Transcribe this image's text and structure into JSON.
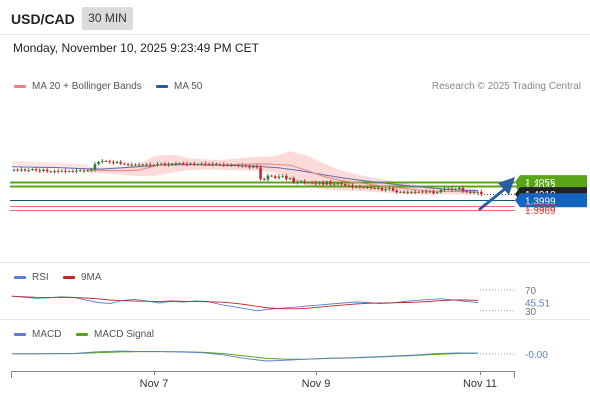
{
  "header": {
    "symbol": "USD/CAD",
    "timeframe": "30 MIN"
  },
  "datetime": "Monday, November 10, 2025 9:23:49 PM CET",
  "legend": {
    "ma20_bb": "MA 20 + Bollinger Bands",
    "ma50": "MA 50",
    "copyright": "Research © 2025 Trading Central"
  },
  "rsi_legend": {
    "rsi": "RSI",
    "ma9": "9MA"
  },
  "macd_legend": {
    "macd": "MACD",
    "signal": "MACD Signal"
  },
  "colors": {
    "up": "#2e7d32",
    "down": "#c62828",
    "ma20": "#f08080",
    "band": "#fbd3d3",
    "ma50": "#5b6fb5",
    "green": "#58a618",
    "blue": "#1565c0",
    "arrow": "#2b5d9c",
    "red_level": "#d94040"
  },
  "chart_data": {
    "type": "candlestick",
    "symbol": "USD/CAD",
    "x_ticks": [
      "Nov 7",
      "Nov 9",
      "Nov 11"
    ],
    "levels": [
      {
        "value": 1.4055,
        "label": "1.4055",
        "kind": "green"
      },
      {
        "value": 1.4043,
        "label": "1.4043",
        "kind": "green"
      },
      {
        "value": 1.4018,
        "label": "1.4018",
        "kind": "price"
      },
      {
        "value": 1.3999,
        "label": "1.3999",
        "kind": "blue"
      },
      {
        "value": 1.398,
        "label": "1.3980",
        "kind": "red"
      },
      {
        "value": 1.3969,
        "label": "1.3969",
        "kind": "red"
      }
    ],
    "close": [
      1.4093,
      1.4092,
      1.4094,
      1.409,
      1.4092,
      1.4095,
      1.4091,
      1.4089,
      1.4093,
      1.4088,
      1.4086,
      1.4089,
      1.4088,
      1.409,
      1.4087,
      1.4089,
      1.4088,
      1.409,
      1.4091,
      1.4089,
      1.4091,
      1.4093,
      1.411,
      1.4117,
      1.412,
      1.4119,
      1.4116,
      1.4114,
      1.4117,
      1.4112,
      1.411,
      1.4108,
      1.4109,
      1.4108,
      1.4109,
      1.4108,
      1.4109,
      1.4107,
      1.4108,
      1.4111,
      1.4112,
      1.4108,
      1.4109,
      1.411,
      1.4112,
      1.4113,
      1.4111,
      1.411,
      1.4112,
      1.411,
      1.4111,
      1.4112,
      1.4111,
      1.4109,
      1.4112,
      1.4109,
      1.4109,
      1.4108,
      1.4107,
      1.4107,
      1.4107,
      1.4105,
      1.4106,
      1.4103,
      1.41,
      1.4105,
      1.41,
      1.4065,
      1.4063,
      1.4075,
      1.4073,
      1.4068,
      1.4072,
      1.4074,
      1.4064,
      1.4067,
      1.4054,
      1.4055,
      1.4058,
      1.4053,
      1.4054,
      1.4053,
      1.405,
      1.4054,
      1.4048,
      1.4057,
      1.4048,
      1.405,
      1.4051,
      1.4049,
      1.4045,
      1.4044,
      1.4039,
      1.4041,
      1.4039,
      1.4038,
      1.4039,
      1.4037,
      1.4036,
      1.4037,
      1.403,
      1.4034,
      1.4037,
      1.4029,
      1.4024,
      1.4025,
      1.4023,
      1.4024,
      1.4023,
      1.4025,
      1.4024,
      1.4026,
      1.4025,
      1.4026,
      1.4021,
      1.4024,
      1.4031,
      1.4033,
      1.4035,
      1.4031,
      1.4034,
      1.4037,
      1.4027,
      1.4024,
      1.4024,
      1.4022,
      1.4025,
      1.4018
    ],
    "ma50_points": [
      1.4102,
      1.4101,
      1.41,
      1.4097,
      1.4095,
      1.4099,
      1.4104,
      1.4108,
      1.4109,
      1.4107,
      1.4106,
      1.4104,
      1.4099,
      1.409,
      1.4078,
      1.4067,
      1.4058,
      1.405,
      1.4043,
      1.4036,
      1.4031,
      1.4029
    ],
    "ma20_points": [
      1.4092,
      1.4091,
      1.409,
      1.4092,
      1.4105,
      1.4112,
      1.411,
      1.4109,
      1.4108,
      1.411,
      1.4111,
      1.411,
      1.4107,
      1.409,
      1.4072,
      1.406,
      1.4053,
      1.4046,
      1.404,
      1.4034,
      1.4028,
      1.4027,
      1.4026,
      1.4025
    ],
    "rsi": {
      "value": "45.51",
      "levels": [
        "70",
        "30"
      ],
      "series": [
        58,
        56,
        54,
        55,
        57,
        56,
        51,
        46,
        44,
        50,
        52,
        49,
        45,
        48,
        47,
        49,
        48,
        42,
        38,
        34,
        30,
        33,
        35,
        37,
        39,
        41,
        43,
        45,
        47,
        46,
        44,
        45,
        48,
        50,
        52,
        53,
        51,
        48,
        46
      ]
    },
    "macd": {
      "value": "-0.00",
      "macd": [
        0.1,
        0.1,
        0.2,
        0.3,
        1.0,
        1.3,
        1.2,
        1.1,
        0.9,
        0.6,
        -0.4,
        -2.0,
        -3.2,
        -2.8,
        -2.3,
        -1.9,
        -1.7,
        -1.3,
        -0.9,
        -0.5,
        0.2,
        0.5,
        0.4
      ],
      "signal": [
        0.1,
        0.1,
        0.1,
        0.2,
        0.6,
        0.9,
        1.1,
        1.1,
        1.0,
        0.8,
        0.2,
        -0.9,
        -2.0,
        -2.4,
        -2.3,
        -2.0,
        -1.8,
        -1.5,
        -1.1,
        -0.7,
        -0.2,
        0.2,
        0.3
      ]
    }
  }
}
